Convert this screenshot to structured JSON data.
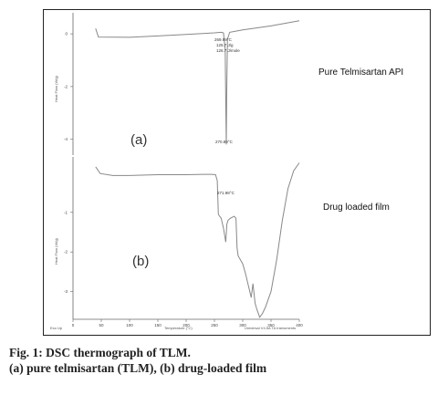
{
  "chart_data": [
    {
      "type": "line",
      "panel_label": "(a)",
      "series_label": "Pure Telmisartan API",
      "ylabel": "Heat Flow (W/g)",
      "yticks": [
        "0",
        "-2",
        "-4"
      ],
      "ylim": [
        -4.6,
        0.8
      ],
      "xlim": [
        0,
        400
      ],
      "annotations": [
        "269.99°C",
        "125.7 J/g",
        "126.7 J/mole",
        "270.89°C"
      ],
      "x": [
        40,
        45,
        100,
        150,
        200,
        250,
        262,
        266,
        269,
        270,
        270.9,
        271.6,
        273,
        277,
        300,
        350,
        400
      ],
      "y": [
        0.2,
        -0.12,
        -0.13,
        -0.08,
        -0.02,
        0.04,
        0.06,
        0.04,
        -0.6,
        -2.6,
        -4.2,
        -2.4,
        -0.2,
        0.06,
        0.15,
        0.3,
        0.5
      ]
    },
    {
      "type": "line",
      "panel_label": "(b)",
      "series_label": "Drug loaded film",
      "ylabel": "Heat Flow (W/g)",
      "xlabel": "Temperature (°C)",
      "yticks": [
        "-1",
        "-2",
        "-3"
      ],
      "xticks": [
        0,
        50,
        100,
        150,
        200,
        250,
        300,
        350,
        400
      ],
      "ylim": [
        -3.7,
        0.4
      ],
      "xlim": [
        0,
        400
      ],
      "annotations": [
        "271.98°C"
      ],
      "footer_left": "Exo Up",
      "footer_right": "Universal V4.5A TA Instruments",
      "x": [
        40,
        48,
        70,
        100,
        150,
        200,
        230,
        245,
        252,
        255,
        257,
        262,
        266,
        270,
        272,
        274,
        278,
        285,
        288,
        290,
        292,
        300,
        305,
        310,
        315,
        318,
        320,
        322,
        325,
        330,
        335,
        340,
        350,
        360,
        370,
        380,
        390,
        400
      ],
      "y": [
        0.15,
        -0.02,
        -0.07,
        -0.07,
        -0.05,
        -0.05,
        -0.04,
        -0.04,
        -0.05,
        -0.2,
        -1.05,
        -1.15,
        -1.4,
        -1.75,
        -1.3,
        -1.2,
        -1.15,
        -1.1,
        -1.15,
        -1.9,
        -2.1,
        -2.3,
        -2.55,
        -2.85,
        -3.15,
        -2.8,
        -3.05,
        -3.3,
        -3.45,
        -3.65,
        -3.55,
        -3.4,
        -3.0,
        -2.2,
        -1.2,
        -0.4,
        0.05,
        0.25
      ]
    }
  ],
  "caption": {
    "line1": "Fig. 1: DSC thermograph of TLM.",
    "line2": "(a) pure telmisartan (TLM), (b) drug-loaded film"
  }
}
